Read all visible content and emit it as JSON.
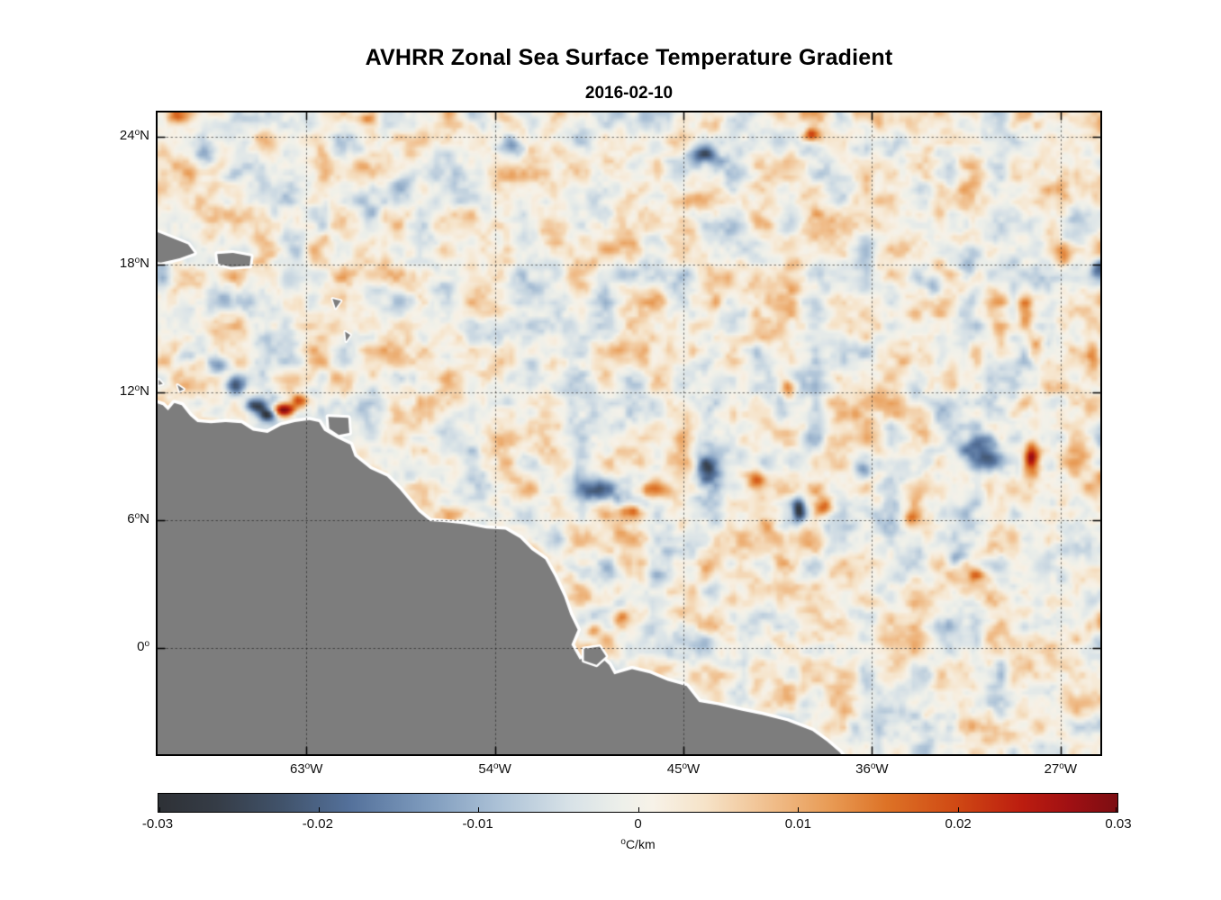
{
  "figure": {
    "title": "AVHRR Zonal Sea Surface Temperature Gradient",
    "subtitle": "2016-02-10"
  },
  "axes": {
    "degree_symbol": "o",
    "y_ticks": [
      {
        "text": "24",
        "hemi": "N",
        "lat": 24
      },
      {
        "text": "18",
        "hemi": "N",
        "lat": 18
      },
      {
        "text": "12",
        "hemi": "N",
        "lat": 12
      },
      {
        "text": "6",
        "hemi": "N",
        "lat": 6
      },
      {
        "text": "0",
        "hemi": "",
        "lat": 0
      }
    ],
    "x_ticks": [
      {
        "text": "63",
        "hemi": "W",
        "lon": -63
      },
      {
        "text": "54",
        "hemi": "W",
        "lon": -54
      },
      {
        "text": "45",
        "hemi": "W",
        "lon": -45
      },
      {
        "text": "36",
        "hemi": "W",
        "lon": -36
      },
      {
        "text": "27",
        "hemi": "W",
        "lon": -27
      }
    ]
  },
  "colorbar": {
    "ticks": [
      "-0.03",
      "-0.02",
      "-0.01",
      "0",
      "0.01",
      "0.02",
      "0.03"
    ],
    "min": -0.03,
    "max": 0.03,
    "unit": "C/km"
  },
  "chart_data": {
    "type": "heatmap",
    "title": "AVHRR Zonal Sea Surface Temperature Gradient",
    "subtitle": "2016-02-10",
    "units": "°C/km",
    "value_range": [
      -0.03,
      0.03
    ],
    "geo": {
      "lon_min": -70.1,
      "lon_max": -25.1,
      "lat_min": -5.0,
      "lat_max": 25.15
    },
    "grid": {
      "lon_lines": [
        -63,
        -54,
        -45,
        -36,
        -27
      ],
      "lat_lines": [
        0,
        6,
        12,
        18,
        24
      ]
    },
    "colormap": [
      {
        "t": 0.0,
        "color": "#2e3136"
      },
      {
        "t": 0.06,
        "color": "#353c46"
      },
      {
        "t": 0.13,
        "color": "#41536b"
      },
      {
        "t": 0.2,
        "color": "#54719b"
      },
      {
        "t": 0.28,
        "color": "#7e9bbd"
      },
      {
        "t": 0.36,
        "color": "#afc4d8"
      },
      {
        "t": 0.43,
        "color": "#d8e2e7"
      },
      {
        "t": 0.485,
        "color": "#eef0ea"
      },
      {
        "t": 0.515,
        "color": "#f7f2e8"
      },
      {
        "t": 0.57,
        "color": "#f6e3c8"
      },
      {
        "t": 0.64,
        "color": "#f0bd8a"
      },
      {
        "t": 0.7,
        "color": "#e89b55"
      },
      {
        "t": 0.76,
        "color": "#dd7226"
      },
      {
        "t": 0.83,
        "color": "#d04a14"
      },
      {
        "t": 0.9,
        "color": "#bc1d0f"
      },
      {
        "t": 0.95,
        "color": "#a01013"
      },
      {
        "t": 1.0,
        "color": "#7c0d12"
      }
    ],
    "background_field": {
      "seed": 20160210,
      "bias": 0.0008,
      "octaves": [
        {
          "freq": 0.8,
          "amp": 0.0075
        },
        {
          "freq": 1.7,
          "amp": 0.0045
        },
        {
          "freq": 3.6,
          "amp": 0.0025
        }
      ]
    },
    "features": [
      {
        "lon": -64.1,
        "lat": 11.2,
        "sx": 0.55,
        "sy": 0.3,
        "amp": 0.034
      },
      {
        "lon": -63.3,
        "lat": 11.6,
        "sx": 0.5,
        "sy": 0.3,
        "amp": 0.018
      },
      {
        "lon": -65.4,
        "lat": 11.4,
        "sx": 0.55,
        "sy": 0.3,
        "amp": -0.026
      },
      {
        "lon": -64.9,
        "lat": 10.95,
        "sx": 0.35,
        "sy": 0.25,
        "amp": -0.028
      },
      {
        "lon": -66.4,
        "lat": 12.3,
        "sx": 0.5,
        "sy": 0.45,
        "amp": -0.022
      },
      {
        "lon": -67.3,
        "lat": 13.2,
        "sx": 0.45,
        "sy": 0.4,
        "amp": -0.014
      },
      {
        "lon": -68.8,
        "lat": 13.7,
        "sx": 0.5,
        "sy": 0.4,
        "amp": -0.01
      },
      {
        "lon": -48.9,
        "lat": 7.4,
        "sx": 0.9,
        "sy": 0.55,
        "amp": -0.02
      },
      {
        "lon": -46.4,
        "lat": 7.4,
        "sx": 0.8,
        "sy": 0.45,
        "amp": 0.018
      },
      {
        "lon": -47.5,
        "lat": 6.4,
        "sx": 0.5,
        "sy": 0.35,
        "amp": 0.014
      },
      {
        "lon": -43.9,
        "lat": 8.3,
        "sx": 0.55,
        "sy": 0.85,
        "amp": -0.019
      },
      {
        "lon": -41.5,
        "lat": 7.8,
        "sx": 0.5,
        "sy": 0.55,
        "amp": 0.015
      },
      {
        "lon": -40.0,
        "lat": 12.25,
        "sx": 0.35,
        "sy": 0.5,
        "amp": 0.018
      },
      {
        "lon": -39.5,
        "lat": 6.5,
        "sx": 0.3,
        "sy": 0.55,
        "amp": -0.028
      },
      {
        "lon": -38.3,
        "lat": 6.6,
        "sx": 0.5,
        "sy": 0.45,
        "amp": 0.022
      },
      {
        "lon": -36.4,
        "lat": 8.4,
        "sx": 0.4,
        "sy": 0.5,
        "amp": -0.016
      },
      {
        "lon": -30.8,
        "lat": 9.1,
        "sx": 1.1,
        "sy": 0.85,
        "amp": -0.026
      },
      {
        "lon": -28.4,
        "lat": 8.9,
        "sx": 0.4,
        "sy": 0.75,
        "amp": 0.033
      },
      {
        "lon": -44.0,
        "lat": 23.2,
        "sx": 0.7,
        "sy": 0.45,
        "amp": -0.02
      },
      {
        "lon": -38.85,
        "lat": 24.1,
        "sx": 0.35,
        "sy": 0.3,
        "amp": 0.02
      },
      {
        "lon": -53.2,
        "lat": 23.5,
        "sx": 0.6,
        "sy": 0.4,
        "amp": -0.013
      },
      {
        "lon": -58.5,
        "lat": 21.8,
        "sx": 0.5,
        "sy": 0.45,
        "amp": -0.012
      },
      {
        "lon": -28.7,
        "lat": 15.9,
        "sx": 0.4,
        "sy": 0.8,
        "amp": 0.02
      },
      {
        "lon": -28.2,
        "lat": 14.0,
        "sx": 0.35,
        "sy": 0.5,
        "amp": 0.016
      },
      {
        "lon": -26.9,
        "lat": 18.6,
        "sx": 0.4,
        "sy": 0.5,
        "amp": 0.016
      },
      {
        "lon": -31.4,
        "lat": 17.75,
        "sx": 0.5,
        "sy": 0.6,
        "amp": -0.016
      },
      {
        "lon": -33.1,
        "lat": 16.9,
        "sx": 0.45,
        "sy": 0.55,
        "amp": -0.014
      },
      {
        "lon": -25.4,
        "lat": 13.7,
        "sx": 0.35,
        "sy": 0.6,
        "amp": 0.016
      },
      {
        "lon": -25.2,
        "lat": 17.75,
        "sx": 0.35,
        "sy": 0.5,
        "amp": -0.013
      },
      {
        "lon": -60.1,
        "lat": 24.9,
        "sx": 0.5,
        "sy": 0.3,
        "amp": 0.013
      },
      {
        "lon": -69.2,
        "lat": 24.9,
        "sx": 0.4,
        "sy": 0.3,
        "amp": 0.012
      },
      {
        "lon": -67.8,
        "lat": 23.0,
        "sx": 0.5,
        "sy": 0.5,
        "amp": -0.013
      },
      {
        "lon": -48.0,
        "lat": 1.45,
        "sx": 0.4,
        "sy": 0.35,
        "amp": 0.014
      },
      {
        "lon": -49.3,
        "lat": 0.8,
        "sx": 0.35,
        "sy": 0.3,
        "amp": 0.012
      },
      {
        "lon": -34.2,
        "lat": 6.1,
        "sx": 0.4,
        "sy": 0.35,
        "amp": 0.014
      },
      {
        "lon": -32.0,
        "lat": 4.2,
        "sx": 0.5,
        "sy": 0.45,
        "amp": -0.013
      },
      {
        "lon": -31.0,
        "lat": 3.4,
        "sx": 0.35,
        "sy": 0.3,
        "amp": 0.012
      }
    ],
    "land": {
      "fill": "#7d7d7d",
      "coast_halo": "#ffffff",
      "polygons": {
        "south_america": [
          [
            -70.3,
            11.55
          ],
          [
            -69.85,
            11.4
          ],
          [
            -69.6,
            11.15
          ],
          [
            -69.3,
            11.5
          ],
          [
            -68.95,
            11.4
          ],
          [
            -68.55,
            10.9
          ],
          [
            -68.2,
            10.6
          ],
          [
            -67.55,
            10.55
          ],
          [
            -66.85,
            10.6
          ],
          [
            -66.1,
            10.55
          ],
          [
            -65.55,
            10.2
          ],
          [
            -64.85,
            10.1
          ],
          [
            -64.2,
            10.45
          ],
          [
            -63.55,
            10.6
          ],
          [
            -62.85,
            10.7
          ],
          [
            -62.4,
            10.6
          ],
          [
            -62.15,
            10.2
          ],
          [
            -61.55,
            9.85
          ],
          [
            -60.9,
            9.55
          ],
          [
            -60.7,
            9.0
          ],
          [
            -59.95,
            8.4
          ],
          [
            -59.15,
            8.05
          ],
          [
            -58.55,
            7.45
          ],
          [
            -57.65,
            6.4
          ],
          [
            -57.1,
            5.95
          ],
          [
            -56.35,
            5.9
          ],
          [
            -55.45,
            5.8
          ],
          [
            -54.4,
            5.6
          ],
          [
            -53.5,
            5.55
          ],
          [
            -52.8,
            5.15
          ],
          [
            -52.25,
            4.6
          ],
          [
            -51.6,
            4.15
          ],
          [
            -51.15,
            3.35
          ],
          [
            -50.7,
            2.4
          ],
          [
            -50.4,
            1.55
          ],
          [
            -50.05,
            0.85
          ],
          [
            -50.35,
            0.15
          ],
          [
            -49.95,
            -0.55
          ],
          [
            -49.1,
            -0.3
          ],
          [
            -48.55,
            -0.8
          ],
          [
            -48.3,
            -1.25
          ],
          [
            -47.45,
            -1.0
          ],
          [
            -46.6,
            -1.2
          ],
          [
            -45.75,
            -1.55
          ],
          [
            -44.85,
            -1.8
          ],
          [
            -44.25,
            -2.55
          ],
          [
            -43.35,
            -2.7
          ],
          [
            -42.25,
            -2.95
          ],
          [
            -41.25,
            -3.15
          ],
          [
            -40.05,
            -3.45
          ],
          [
            -38.85,
            -3.9
          ],
          [
            -38.15,
            -4.4
          ],
          [
            -37.55,
            -4.9
          ],
          [
            -37.25,
            -5.3
          ],
          [
            -70.3,
            -5.3
          ]
        ],
        "marajo": [
          [
            -49.75,
            -0.05
          ],
          [
            -49.0,
            0.05
          ],
          [
            -48.7,
            -0.4
          ],
          [
            -49.15,
            -0.8
          ],
          [
            -49.75,
            -0.6
          ]
        ],
        "trinidad": [
          [
            -61.95,
            10.85
          ],
          [
            -61.0,
            10.8
          ],
          [
            -60.95,
            10.1
          ],
          [
            -61.45,
            10.0
          ],
          [
            -61.9,
            10.3
          ]
        ],
        "hispaniola": [
          [
            -70.3,
            19.6
          ],
          [
            -69.4,
            19.25
          ],
          [
            -68.65,
            18.95
          ],
          [
            -68.35,
            18.55
          ],
          [
            -69.05,
            18.3
          ],
          [
            -69.95,
            18.1
          ],
          [
            -70.3,
            18.15
          ]
        ],
        "puerto_rico": [
          [
            -67.25,
            18.5
          ],
          [
            -66.5,
            18.55
          ],
          [
            -65.65,
            18.4
          ],
          [
            -65.7,
            17.95
          ],
          [
            -66.6,
            17.9
          ],
          [
            -67.2,
            18.05
          ]
        ],
        "guadeloupe": [
          [
            -61.75,
            16.4
          ],
          [
            -61.35,
            16.3
          ],
          [
            -61.6,
            15.95
          ]
        ],
        "martinique": [
          [
            -61.15,
            14.85
          ],
          [
            -60.9,
            14.7
          ],
          [
            -61.1,
            14.4
          ]
        ],
        "curacao": [
          [
            -69.15,
            12.35
          ],
          [
            -68.85,
            12.15
          ],
          [
            -69.05,
            12.05
          ]
        ],
        "aruba": [
          [
            -70.05,
            12.6
          ],
          [
            -69.85,
            12.4
          ],
          [
            -70.05,
            12.35
          ]
        ]
      }
    }
  }
}
